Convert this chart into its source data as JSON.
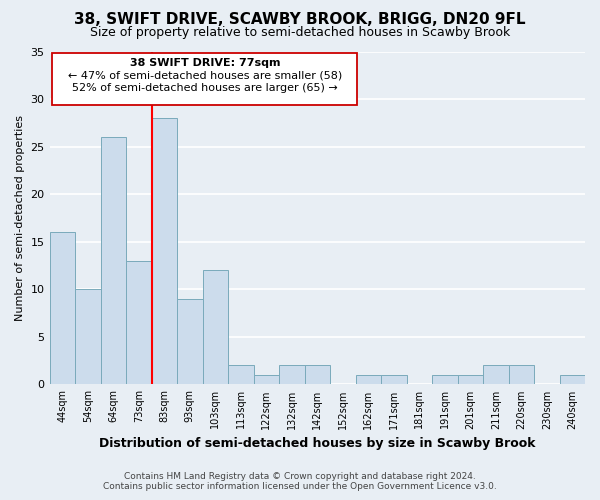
{
  "title": "38, SWIFT DRIVE, SCAWBY BROOK, BRIGG, DN20 9FL",
  "subtitle": "Size of property relative to semi-detached houses in Scawby Brook",
  "xlabel": "Distribution of semi-detached houses by size in Scawby Brook",
  "ylabel": "Number of semi-detached properties",
  "bin_labels": [
    "44sqm",
    "54sqm",
    "64sqm",
    "73sqm",
    "83sqm",
    "93sqm",
    "103sqm",
    "113sqm",
    "122sqm",
    "132sqm",
    "142sqm",
    "152sqm",
    "162sqm",
    "171sqm",
    "181sqm",
    "191sqm",
    "201sqm",
    "211sqm",
    "220sqm",
    "230sqm",
    "240sqm"
  ],
  "bin_values": [
    16,
    10,
    26,
    13,
    28,
    9,
    12,
    2,
    1,
    2,
    2,
    0,
    1,
    1,
    0,
    1,
    1,
    2,
    2,
    0,
    1
  ],
  "bar_color": "#ccdcec",
  "bar_edge_color": "#7aaabb",
  "reference_line_x_label": "73sqm",
  "reference_line_color": "red",
  "ylim": [
    0,
    35
  ],
  "yticks": [
    0,
    5,
    10,
    15,
    20,
    25,
    30,
    35
  ],
  "annotation_title": "38 SWIFT DRIVE: 77sqm",
  "annotation_line1": "← 47% of semi-detached houses are smaller (58)",
  "annotation_line2": "52% of semi-detached houses are larger (65) →",
  "footer_line1": "Contains HM Land Registry data © Crown copyright and database right 2024.",
  "footer_line2": "Contains public sector information licensed under the Open Government Licence v3.0.",
  "background_color": "#e8eef4"
}
